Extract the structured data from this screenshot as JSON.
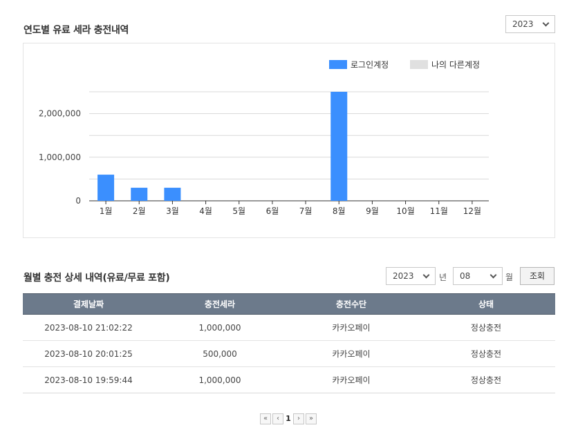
{
  "yearly": {
    "title": "연도별 유료 세라 충전내역",
    "year_select": "2023"
  },
  "monthly": {
    "title": "월별 충전 상세 내역(유료/무료 포함)",
    "year_select": "2023",
    "year_unit": "년",
    "month_select": "08",
    "month_unit": "월",
    "search_label": "조회"
  },
  "chart_data": {
    "type": "bar",
    "categories": [
      "1월",
      "2월",
      "3월",
      "4월",
      "5월",
      "6월",
      "7월",
      "8월",
      "9월",
      "10월",
      "11월",
      "12월"
    ],
    "series": [
      {
        "name": "로그인계정",
        "color": "#3b8ffe",
        "values": [
          600000,
          300000,
          300000,
          0,
          0,
          0,
          0,
          2500000,
          0,
          0,
          0,
          0
        ]
      },
      {
        "name": "나의 다른계정",
        "color": "#e0e0e0",
        "values": [
          0,
          0,
          0,
          0,
          0,
          0,
          0,
          0,
          0,
          0,
          0,
          0
        ]
      }
    ],
    "yticks": [
      0,
      1000000,
      2000000
    ],
    "ytick_labels": [
      "0",
      "1,000,000",
      "2,000,000"
    ],
    "ylim": [
      0,
      2500000
    ],
    "grid": true,
    "legend_position": "top-right"
  },
  "table": {
    "headers": [
      "결제날짜",
      "충전세라",
      "충전수단",
      "상태"
    ],
    "rows": [
      [
        "2023-08-10 21:02:22",
        "1,000,000",
        "카카오페이",
        "정상충전"
      ],
      [
        "2023-08-10 20:01:25",
        "500,000",
        "카카오페이",
        "정상충전"
      ],
      [
        "2023-08-10 19:59:44",
        "1,000,000",
        "카카오페이",
        "정상충전"
      ]
    ]
  },
  "pagination": {
    "first": "«",
    "prev": "‹",
    "current": "1",
    "next": "›",
    "last": "»"
  }
}
